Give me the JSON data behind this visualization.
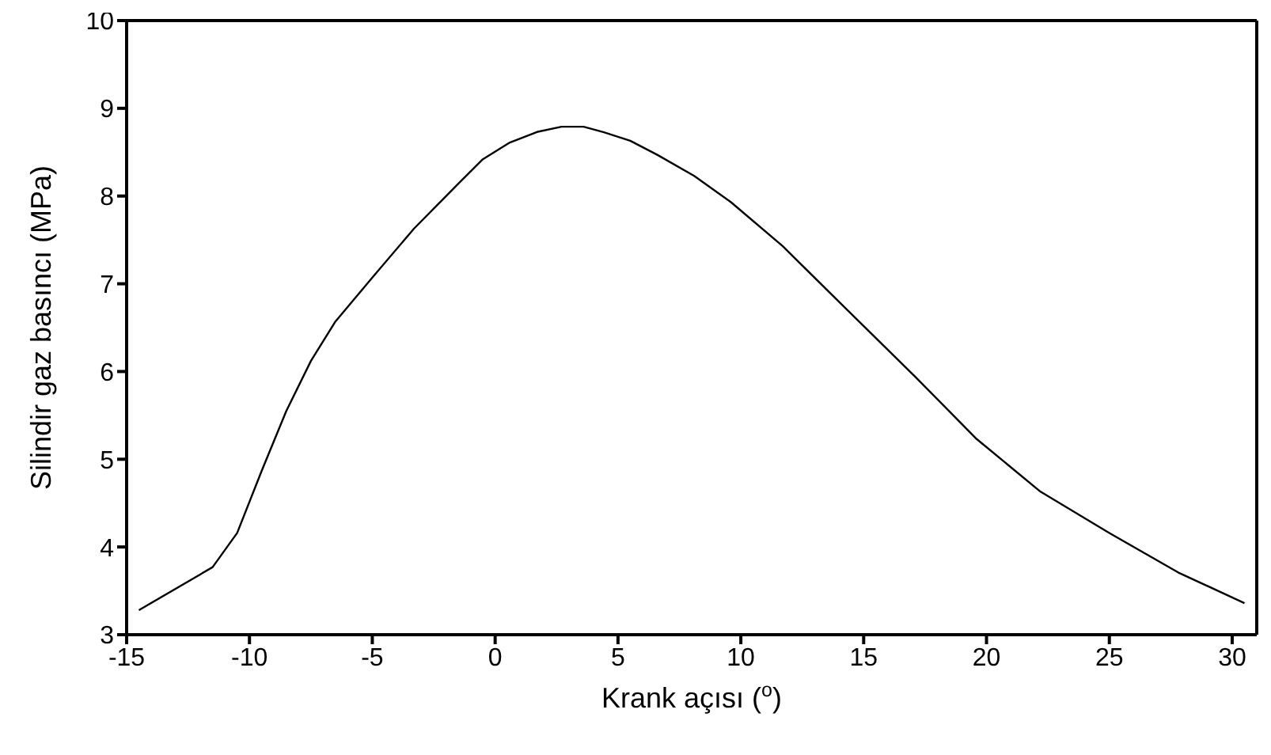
{
  "chart_data": {
    "type": "line",
    "xlabel": "Krank açısı ($^{o}$)",
    "ylabel": "Silindir gaz basıncı (MPa)",
    "x": [
      -14.5,
      -11.5,
      -10.5,
      -9.5,
      -8.5,
      -7.5,
      -6.5,
      -5,
      -3.3,
      -1.5,
      -0.5,
      0.6,
      1.7,
      2.7,
      3.6,
      4.4,
      5.5,
      6.6,
      8.1,
      9.6,
      11.7,
      14.3,
      17.1,
      19.6,
      22.2,
      25,
      27.8,
      30.5
    ],
    "series": [
      {
        "color": "#000000",
        "values": [
          3.28,
          3.77,
          4.16,
          4.87,
          5.55,
          6.12,
          6.57,
          7.07,
          7.63,
          8.14,
          8.42,
          8.61,
          8.73,
          8.79,
          8.79,
          8.73,
          8.63,
          8.47,
          8.23,
          7.93,
          7.43,
          6.71,
          5.94,
          5.23,
          4.63,
          4.16,
          3.71,
          3.36
        ]
      }
    ],
    "xlim": [
      -15,
      31
    ],
    "xticks": [
      -15,
      -10,
      -5,
      0,
      5,
      10,
      15,
      20,
      25,
      30
    ],
    "ylim": [
      3,
      10
    ],
    "yticks": [
      3,
      4,
      5,
      6,
      7,
      8,
      9,
      10
    ],
    "marker": "none"
  }
}
